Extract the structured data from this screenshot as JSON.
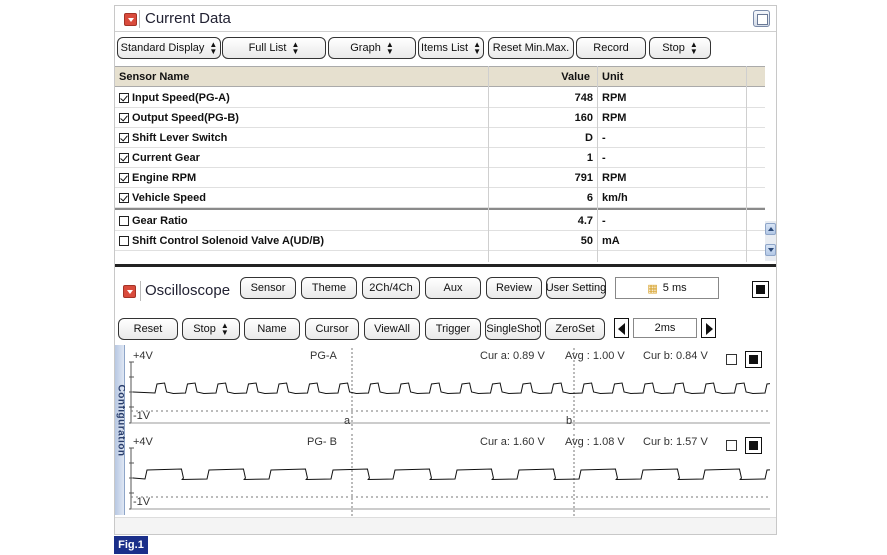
{
  "current_data": {
    "title": "Current Data",
    "toolbar": [
      {
        "label": "Standard Display",
        "select": true
      },
      {
        "label": "Full List",
        "select": true
      },
      {
        "label": "Graph",
        "select": true
      },
      {
        "label": "Items List",
        "select": true
      },
      {
        "label": "Reset Min.Max.",
        "select": false
      },
      {
        "label": "Record",
        "select": false
      },
      {
        "label": "Stop",
        "select": true
      }
    ],
    "columns": {
      "name": "Sensor Name",
      "value": "Value",
      "unit": "Unit"
    },
    "rows": [
      {
        "name": "Input Speed(PG-A)",
        "value": "748",
        "unit": "RPM",
        "checked": true
      },
      {
        "name": "Output Speed(PG-B)",
        "value": "160",
        "unit": "RPM",
        "checked": true
      },
      {
        "name": "Shift Lever Switch",
        "value": "D",
        "unit": "-",
        "checked": true
      },
      {
        "name": "Current Gear",
        "value": "1",
        "unit": "-",
        "checked": true
      },
      {
        "name": "Engine RPM",
        "value": "791",
        "unit": "RPM",
        "checked": true
      },
      {
        "name": "Vehicle Speed",
        "value": "6",
        "unit": "km/h",
        "checked": true
      },
      {
        "name": "Gear Ratio",
        "value": "4.7",
        "unit": "-",
        "checked": false
      },
      {
        "name": "Shift Control Solenoid Valve A(UD/B)",
        "value": "50",
        "unit": "mA",
        "checked": false
      }
    ]
  },
  "oscilloscope": {
    "title": "Oscilloscope",
    "top_buttons": [
      "Sensor",
      "Theme",
      "2Ch/4Ch",
      "Aux",
      "Review",
      "User Setting"
    ],
    "timebase": "5 ms",
    "second_buttons": [
      {
        "label": "Reset",
        "select": false
      },
      {
        "label": "Stop",
        "select": true
      },
      {
        "label": "Name",
        "select": false
      },
      {
        "label": "Cursor",
        "select": false
      },
      {
        "label": "ViewAll",
        "select": false
      },
      {
        "label": "Trigger",
        "select": false
      },
      {
        "label": "SingleShot",
        "select": false
      },
      {
        "label": "ZeroSet",
        "select": false
      }
    ],
    "time_div": "2ms",
    "side_tab": "Configuration",
    "channels": [
      {
        "name": "PG-A",
        "top": "+4V",
        "bottom": "-1V",
        "cur_a": "Cur a: 0.89 V",
        "avg": "Avg : 1.00 V",
        "cur_b": "Cur b: 0.84 V",
        "cursor_a": "a",
        "cursor_b": "b"
      },
      {
        "name": "PG- B",
        "top": "+4V",
        "bottom": "-1V",
        "cur_a": "Cur a: 1.60 V",
        "avg": "Avg : 1.08 V",
        "cur_b": "Cur b: 1.57 V"
      }
    ]
  },
  "figure_label": "Fig.1"
}
